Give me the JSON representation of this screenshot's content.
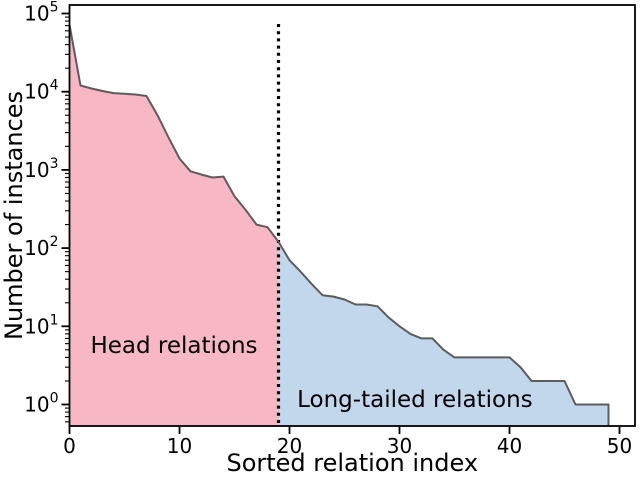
{
  "chart_data": {
    "type": "area",
    "title": "",
    "xlabel": "Sorted relation index",
    "ylabel": "Number of instances",
    "yscale": "log",
    "x": [
      0,
      1,
      2,
      3,
      4,
      5,
      6,
      7,
      8,
      9,
      10,
      11,
      12,
      13,
      14,
      15,
      16,
      17,
      18,
      19,
      20,
      21,
      22,
      23,
      24,
      25,
      26,
      27,
      28,
      29,
      30,
      31,
      32,
      33,
      34,
      35,
      36,
      37,
      38,
      39,
      40,
      41,
      42,
      43,
      44,
      45,
      46,
      47,
      48,
      49
    ],
    "values": [
      72000,
      12000,
      11000,
      10200,
      9600,
      9400,
      9200,
      8800,
      5000,
      2600,
      1400,
      960,
      870,
      800,
      820,
      460,
      310,
      200,
      185,
      120,
      70,
      50,
      35,
      25,
      24,
      22,
      19,
      19,
      18,
      13,
      10,
      8,
      7,
      7,
      5,
      4,
      4,
      4,
      4,
      4,
      4,
      3,
      2,
      2,
      2,
      2,
      1,
      1,
      1,
      1
    ],
    "boundary_x": 19,
    "series": [
      {
        "name": "Head relations",
        "x_start": 0,
        "x_end": 19,
        "fill_color": "#f8b7c4"
      },
      {
        "name": "Long-tailed relations",
        "x_start": 19,
        "x_end": 49,
        "fill_color": "#c2d7ec"
      }
    ],
    "x_ticks": [
      "0",
      "10",
      "20",
      "30",
      "40",
      "50"
    ],
    "y_ticks": [
      "10^0",
      "10^1",
      "10^2",
      "10^3",
      "10^4",
      "10^5"
    ],
    "xlim": [
      0,
      51.4
    ],
    "ylim": [
      0.52,
      120000
    ],
    "grid": "off",
    "legend": "none",
    "line_color": "#5c5c5c",
    "divider_color": "#000000",
    "divider_style": "dotted",
    "text_color": "#000000",
    "annotations": [
      {
        "text": "Head relations",
        "x": 9.5,
        "y": 5.8,
        "color": "#1a1a1a"
      },
      {
        "text": "Long-tailed relations",
        "x": 31.4,
        "y": 1.18,
        "color": "#1a1a1a"
      }
    ]
  }
}
